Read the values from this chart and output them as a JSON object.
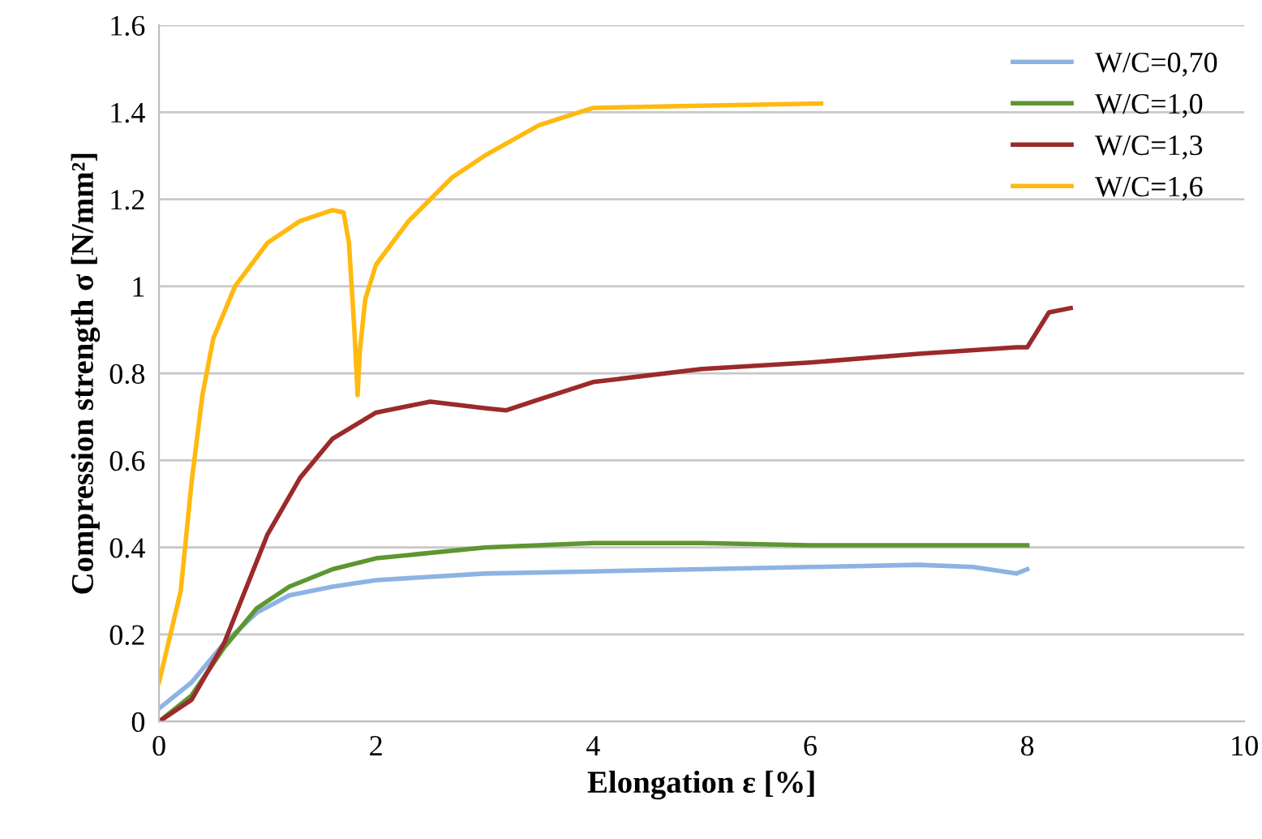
{
  "chart_data": {
    "type": "line",
    "xlabel": "Elongation ε [%]",
    "ylabel": "Compression strength σ [N/mm²]",
    "xlim": [
      0,
      10
    ],
    "xticks": [
      0,
      2,
      4,
      6,
      8,
      10
    ],
    "ylim": [
      0,
      1.6
    ],
    "yticks": [
      0,
      0.2,
      0.4,
      0.6,
      0.8,
      1,
      1.2,
      1.4,
      1.6
    ],
    "grid": "y",
    "legend": "top right",
    "marker": "none",
    "line_style": "solid",
    "series": [
      {
        "name": "W/C=0,70",
        "color": "#8db3e2",
        "x": [
          0,
          0.3,
          0.6,
          0.9,
          1.2,
          1.6,
          2,
          3,
          4,
          5,
          6,
          7,
          7.5,
          7.9,
          8
        ],
        "values": [
          0.03,
          0.09,
          0.18,
          0.25,
          0.29,
          0.31,
          0.325,
          0.34,
          0.345,
          0.35,
          0.355,
          0.36,
          0.355,
          0.34,
          0.35
        ]
      },
      {
        "name": "W/C=1,0",
        "color": "#5e9632",
        "x": [
          0,
          0.3,
          0.6,
          0.9,
          1.2,
          1.6,
          2,
          3,
          4,
          5,
          6,
          7,
          8
        ],
        "values": [
          0,
          0.06,
          0.17,
          0.26,
          0.31,
          0.35,
          0.375,
          0.4,
          0.41,
          0.41,
          0.405,
          0.405,
          0.405
        ]
      },
      {
        "name": "W/C=1,3",
        "color": "#9b2a2a",
        "x": [
          0,
          0.3,
          0.6,
          1,
          1.3,
          1.6,
          2,
          2.5,
          3,
          3.2,
          3.5,
          4,
          5,
          6,
          7,
          7.9,
          8,
          8.2,
          8.4
        ],
        "values": [
          0,
          0.05,
          0.18,
          0.43,
          0.56,
          0.65,
          0.71,
          0.735,
          0.72,
          0.715,
          0.74,
          0.78,
          0.81,
          0.825,
          0.845,
          0.86,
          0.86,
          0.94,
          0.95
        ]
      },
      {
        "name": "W/C=1,6",
        "color": "#ffb90f",
        "x": [
          0,
          0.2,
          0.3,
          0.4,
          0.5,
          0.7,
          1,
          1.3,
          1.6,
          1.7,
          1.75,
          1.8,
          1.83,
          1.85,
          1.9,
          2,
          2.3,
          2.7,
          3,
          3.5,
          4,
          5,
          6.1
        ],
        "values": [
          0.09,
          0.3,
          0.55,
          0.75,
          0.88,
          1,
          1.1,
          1.15,
          1.175,
          1.17,
          1.1,
          0.9,
          0.75,
          0.85,
          0.97,
          1.05,
          1.15,
          1.25,
          1.3,
          1.37,
          1.41,
          1.415,
          1.42
        ]
      }
    ]
  }
}
